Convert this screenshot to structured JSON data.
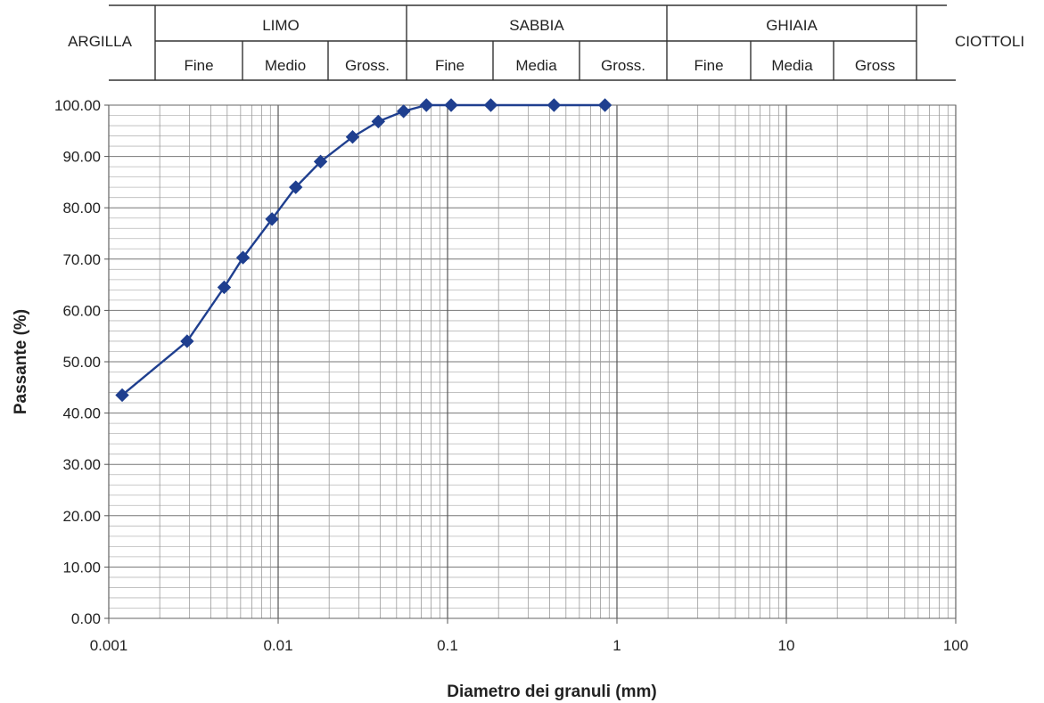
{
  "classification": {
    "left_label": "ARGILLA",
    "right_label": "CIOTTOLI",
    "groups": [
      {
        "name": "LIMO",
        "subs": [
          "Fine",
          "Medio",
          "Gross."
        ]
      },
      {
        "name": "SABBIA",
        "subs": [
          "Fine",
          "Media",
          "Gross."
        ]
      },
      {
        "name": "GHIAIA",
        "subs": [
          "Fine",
          "Media",
          "Gross"
        ]
      }
    ]
  },
  "chart_data": {
    "type": "line",
    "x_scale": "log",
    "xlabel": "Diametro dei granuli (mm)",
    "ylabel": "Passante (%)",
    "xlim": [
      0.001,
      100
    ],
    "ylim": [
      0,
      100
    ],
    "grid": true,
    "x_tick_labels": [
      "0.001",
      "0.01",
      "0.1",
      "1",
      "10",
      "100"
    ],
    "y_tick_labels": [
      "0.00",
      "10.00",
      "20.00",
      "30.00",
      "40.00",
      "50.00",
      "60.00",
      "70.00",
      "80.00",
      "90.00",
      "100.00"
    ],
    "series_color": "#1f3f8f",
    "series": [
      {
        "x": [
          0.0012,
          0.0029,
          0.0048,
          0.0062,
          0.0092,
          0.0127,
          0.0178,
          0.0275,
          0.039,
          0.055,
          0.075,
          0.105,
          0.18,
          0.425,
          0.85
        ],
        "values": [
          43.5,
          54.0,
          64.5,
          70.3,
          77.8,
          84.0,
          89.0,
          93.8,
          96.8,
          98.8,
          100.0,
          100.0,
          100.0,
          100.0,
          100.0
        ]
      }
    ]
  }
}
